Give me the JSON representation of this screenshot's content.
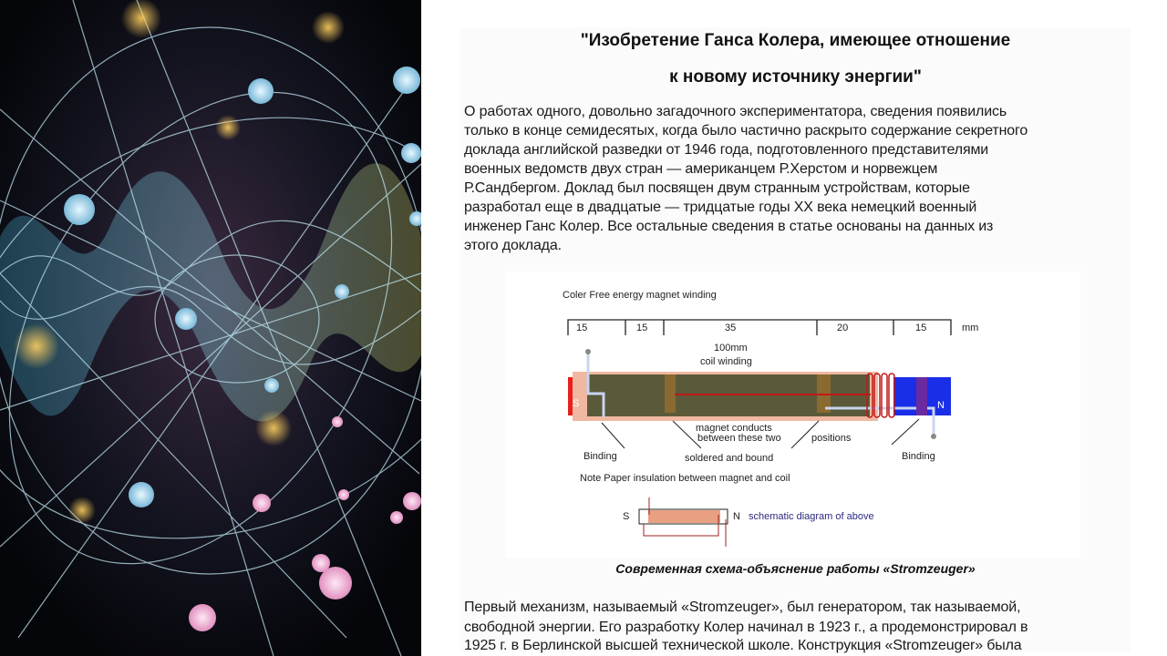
{
  "title_lines": [
    "\"Изобретение Ганса Колера, имеющее отношение",
    "к новому источнику энергии\""
  ],
  "paragraph1": [
    "О работах одного, довольно загадочного экспериментатора, сведения появились",
    "только в конце семидесятых, когда было частично раскрыто содержание секретного",
    "доклада английской разведки от 1946 года, подготовленного представителями",
    "военных ведомств двух стран — американцем Р.Херстом и норвежцем",
    "Р.Сандбергом. Доклад был посвящен двум странным устройствам, которые",
    "разработал еще в двадцатые — тридцатые годы XX века немецкий военный",
    "инженер Ганс Колер. Все остальные сведения в статье основаны на данных из",
    "этого доклада."
  ],
  "figure": {
    "title": "Coler  Free energy  magnet  winding",
    "scale": [
      "15",
      "15",
      "35",
      "20",
      "15"
    ],
    "unit": "mm",
    "coil_label_1": "100mm",
    "coil_label_2": "coil winding",
    "pole_s": "S",
    "pole_n": "N",
    "binding_left": "Binding",
    "binding_right": "Binding",
    "conducts_1": "magnet conducts",
    "conducts_2": "between these two",
    "positions": "positions",
    "soldered": "soldered   and    bound",
    "note": "Note Paper insulation between  magnet   and  coil",
    "schematic": "schematic diagram   of above"
  },
  "caption": "Современная схема-объяснение работы «Stromzeuger»",
  "paragraph2": [
    "Первый механизм, называемый «Stromzeuger», был генератором, так называемой,",
    "свободной энергии. Его разработку Колер начинал в 1923 г., а продемонстрировал в",
    "1925 г. в Берлинской высшей технической школе. Конструкция «Stromzeuger» была"
  ],
  "colors": {
    "magnet_s": "#e8201c",
    "magnet_n": "#1a2ee8",
    "core": "#5a5a3a",
    "coil": "#e8a080",
    "schematic_text": "#2a2a80"
  }
}
